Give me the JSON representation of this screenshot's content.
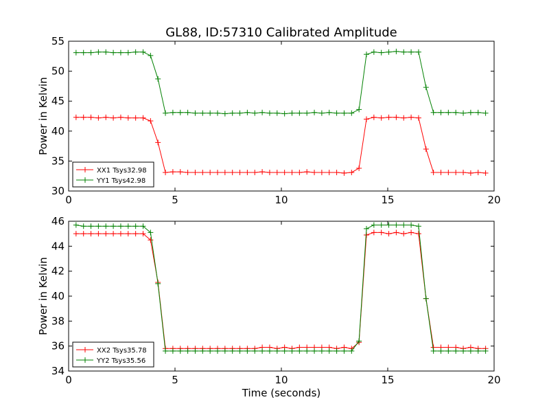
{
  "chart_data": [
    {
      "type": "line",
      "title": "GL88, ID:57310 Calibrated Amplitude",
      "xlabel": "",
      "ylabel": "Power in Kelvin",
      "xlim": [
        0,
        20
      ],
      "ylim": [
        30,
        55
      ],
      "xticks": [
        0,
        5,
        10,
        15,
        20
      ],
      "yticks": [
        30,
        35,
        40,
        45,
        50,
        55
      ],
      "legend_position": "lower-left",
      "grid": false,
      "x": [
        0.35,
        0.7,
        1.05,
        1.4,
        1.75,
        2.1,
        2.45,
        2.8,
        3.15,
        3.5,
        3.85,
        4.2,
        4.55,
        4.9,
        5.25,
        5.6,
        5.95,
        6.3,
        6.65,
        7.0,
        7.35,
        7.7,
        8.05,
        8.4,
        8.75,
        9.1,
        9.45,
        9.8,
        10.15,
        10.5,
        10.85,
        11.2,
        11.55,
        11.9,
        12.25,
        12.6,
        12.95,
        13.3,
        13.65,
        14.0,
        14.35,
        14.7,
        15.05,
        15.4,
        15.75,
        16.1,
        16.45,
        16.8,
        17.15,
        17.5,
        17.85,
        18.2,
        18.55,
        18.9,
        19.25,
        19.6
      ],
      "series": [
        {
          "name": "XX1 Tsys32.98",
          "color": "#ff0000",
          "values": [
            42.3,
            42.3,
            42.3,
            42.2,
            42.3,
            42.2,
            42.3,
            42.2,
            42.2,
            42.2,
            41.7,
            38.1,
            33.1,
            33.2,
            33.2,
            33.1,
            33.1,
            33.1,
            33.1,
            33.1,
            33.1,
            33.1,
            33.1,
            33.1,
            33.1,
            33.2,
            33.1,
            33.1,
            33.1,
            33.1,
            33.1,
            33.2,
            33.1,
            33.1,
            33.1,
            33.1,
            33.0,
            33.1,
            33.8,
            42.0,
            42.3,
            42.2,
            42.3,
            42.3,
            42.2,
            42.3,
            42.2,
            37.0,
            33.1,
            33.1,
            33.1,
            33.1,
            33.1,
            33.0,
            33.1,
            33.0
          ]
        },
        {
          "name": "YY1 Tsys42.98",
          "color": "#008000",
          "values": [
            53.1,
            53.1,
            53.1,
            53.2,
            53.2,
            53.1,
            53.1,
            53.1,
            53.2,
            53.2,
            52.6,
            48.7,
            43.0,
            43.1,
            43.1,
            43.1,
            43.0,
            43.0,
            43.0,
            43.0,
            42.9,
            43.0,
            43.0,
            43.1,
            43.0,
            43.1,
            43.0,
            43.0,
            42.9,
            43.0,
            43.0,
            43.0,
            43.1,
            43.0,
            43.1,
            43.0,
            43.0,
            43.0,
            43.6,
            52.8,
            53.2,
            53.1,
            53.2,
            53.3,
            53.2,
            53.2,
            53.2,
            47.3,
            43.1,
            43.1,
            43.1,
            43.1,
            43.0,
            43.1,
            43.1,
            43.0
          ]
        }
      ]
    },
    {
      "type": "line",
      "title": "",
      "xlabel": "Time (seconds)",
      "ylabel": "Power in Kelvin",
      "xlim": [
        0,
        20
      ],
      "ylim": [
        34,
        46
      ],
      "xticks": [
        0,
        5,
        10,
        15,
        20
      ],
      "yticks": [
        34,
        36,
        38,
        40,
        42,
        44,
        46
      ],
      "legend_position": "lower-left",
      "grid": false,
      "x": [
        0.35,
        0.7,
        1.05,
        1.4,
        1.75,
        2.1,
        2.45,
        2.8,
        3.15,
        3.5,
        3.85,
        4.2,
        4.55,
        4.9,
        5.25,
        5.6,
        5.95,
        6.3,
        6.65,
        7.0,
        7.35,
        7.7,
        8.05,
        8.4,
        8.75,
        9.1,
        9.45,
        9.8,
        10.15,
        10.5,
        10.85,
        11.2,
        11.55,
        11.9,
        12.25,
        12.6,
        12.95,
        13.3,
        13.65,
        14.0,
        14.35,
        14.7,
        15.05,
        15.4,
        15.75,
        16.1,
        16.45,
        16.8,
        17.15,
        17.5,
        17.85,
        18.2,
        18.55,
        18.9,
        19.25,
        19.6
      ],
      "series": [
        {
          "name": "XX2 Tsys35.78",
          "color": "#ff0000",
          "values": [
            45.0,
            45.0,
            45.0,
            45.0,
            45.0,
            45.0,
            45.0,
            45.0,
            45.0,
            45.0,
            44.5,
            41.1,
            35.8,
            35.8,
            35.8,
            35.8,
            35.8,
            35.8,
            35.8,
            35.8,
            35.8,
            35.8,
            35.8,
            35.8,
            35.8,
            35.9,
            35.9,
            35.8,
            35.9,
            35.8,
            35.9,
            35.9,
            35.9,
            35.9,
            35.9,
            35.8,
            35.9,
            35.8,
            36.3,
            44.9,
            45.1,
            45.1,
            45.0,
            45.1,
            45.0,
            45.1,
            45.0,
            39.8,
            35.9,
            35.9,
            35.9,
            35.9,
            35.8,
            35.9,
            35.8,
            35.8
          ]
        },
        {
          "name": "YY2 Tsys35.56",
          "color": "#008000",
          "values": [
            45.7,
            45.6,
            45.6,
            45.6,
            45.6,
            45.6,
            45.6,
            45.6,
            45.6,
            45.6,
            45.1,
            41.0,
            35.6,
            35.6,
            35.6,
            35.6,
            35.6,
            35.6,
            35.6,
            35.6,
            35.6,
            35.6,
            35.6,
            35.6,
            35.6,
            35.6,
            35.6,
            35.6,
            35.6,
            35.6,
            35.6,
            35.6,
            35.6,
            35.6,
            35.6,
            35.6,
            35.6,
            35.6,
            36.4,
            45.4,
            45.7,
            45.7,
            45.7,
            45.7,
            45.7,
            45.7,
            45.6,
            39.8,
            35.6,
            35.6,
            35.6,
            35.6,
            35.6,
            35.6,
            35.6,
            35.6
          ]
        }
      ]
    }
  ]
}
